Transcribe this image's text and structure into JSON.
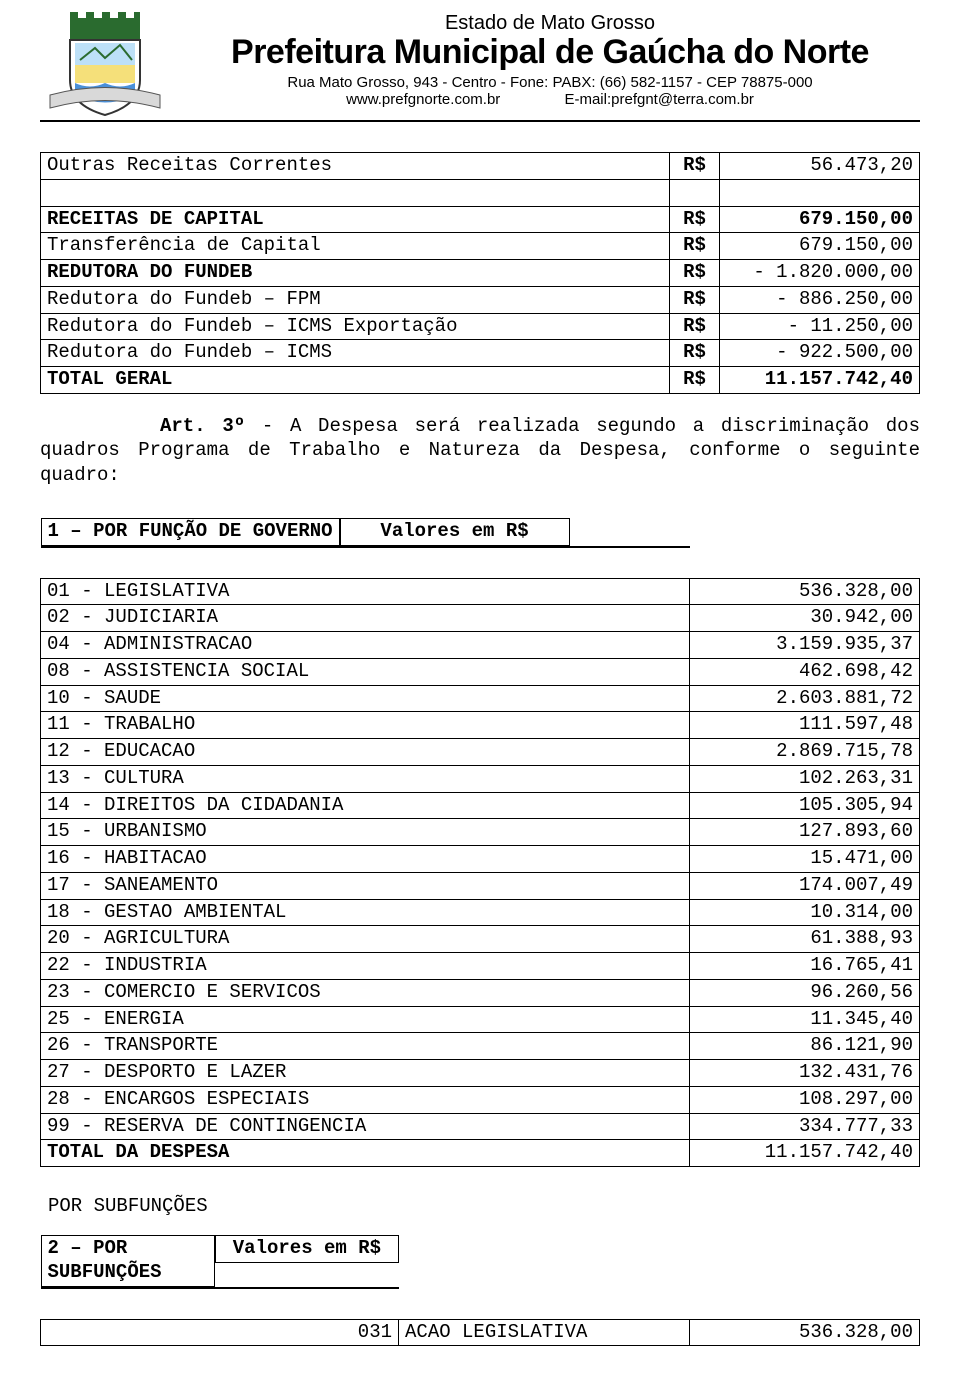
{
  "header": {
    "state": "Estado de Mato Grosso",
    "municipality": "Prefeitura Municipal de Gaúcha do Norte",
    "address": "Rua Mato Grosso, 943 - Centro - Fone: PABX: (66) 582-1157 - CEP 78875-000",
    "website": "www.prefgnorte.com.br",
    "email_label": "E-mail:prefgnt@terra.com.br"
  },
  "receitas_table": {
    "rows": [
      {
        "desc": "Outras Receitas Correntes",
        "cur": "R$",
        "val": "56.473,20",
        "bold": false
      },
      {
        "blank": true
      },
      {
        "desc": "RECEITAS  DE CAPITAL",
        "cur": "R$",
        "val": "679.150,00",
        "bold": true
      },
      {
        "desc": "Transferência de Capital",
        "cur": "R$",
        "val": "679.150,00",
        "bold": false
      },
      {
        "desc": "REDUTORA DO FUNDEB",
        "cur": "R$",
        "val": "- 1.820.000,00",
        "bold": false,
        "desc_bold": true
      },
      {
        "desc": "Redutora do Fundeb – FPM",
        "cur": "R$",
        "val": "- 886.250,00",
        "bold": false
      },
      {
        "desc": "Redutora do Fundeb – ICMS  Exportação",
        "cur": "R$",
        "val": "- 11.250,00",
        "bold": false
      },
      {
        "desc": "Redutora do Fundeb – ICMS",
        "cur": "R$",
        "val": "- 922.500,00",
        "bold": false
      },
      {
        "desc": "TOTAL  GERAL",
        "cur": "R$",
        "val": "11.157.742,40",
        "bold": true
      }
    ]
  },
  "article_text": {
    "art_label": "Art. 3º",
    "rest": " - A Despesa será realizada segundo a discriminação dos quadros Programa de Trabalho e Natureza da Despesa, conforme o seguinte quadro:"
  },
  "funcao_table": {
    "header_left": "1 – POR FUNÇÃO DE GOVERNO",
    "header_right": "Valores em R$",
    "rows": [
      {
        "desc": "01 - LEGISLATIVA",
        "val": "536.328,00"
      },
      {
        "desc": "02 - JUDICIARIA",
        "val": "30.942,00"
      },
      {
        "desc": "04 - ADMINISTRACAO",
        "val": "3.159.935,37"
      },
      {
        "desc": "08 - ASSISTENCIA SOCIAL",
        "val": "462.698,42"
      },
      {
        "desc": "10 - SAUDE",
        "val": "2.603.881,72"
      },
      {
        "desc": "11 - TRABALHO",
        "val": "111.597,48"
      },
      {
        "desc": "12 - EDUCACAO",
        "val": "2.869.715,78"
      },
      {
        "desc": "13 - CULTURA",
        "val": "102.263,31"
      },
      {
        "desc": "14 - DIREITOS DA CIDADANIA",
        "val": "105.305,94"
      },
      {
        "desc": "15 - URBANISMO",
        "val": "127.893,60"
      },
      {
        "desc": "16 - HABITACAO",
        "val": "15.471,00"
      },
      {
        "desc": "17 - SANEAMENTO",
        "val": "174.007,49"
      },
      {
        "desc": "18 - GESTAO AMBIENTAL",
        "val": "10.314,00"
      },
      {
        "desc": "20 - AGRICULTURA",
        "val": "61.388,93"
      },
      {
        "desc": "22 - INDUSTRIA",
        "val": "16.765,41"
      },
      {
        "desc": "23 - COMERCIO E SERVICOS",
        "val": "96.260,56"
      },
      {
        "desc": "25 - ENERGIA",
        "val": "11.345,40"
      },
      {
        "desc": "26 - TRANSPORTE",
        "val": "86.121,90"
      },
      {
        "desc": "27 - DESPORTO E LAZER",
        "val": "132.431,76"
      },
      {
        "desc": "28 - ENCARGOS ESPECIAIS",
        "val": "108.297,00"
      },
      {
        "desc": "99 - RESERVA DE CONTINGENCIA",
        "val": "334.777,33"
      }
    ],
    "total_label": "TOTAL DA DESPESA",
    "total_val": "11.157.742,40"
  },
  "subfuncoes_label": "POR  SUBFUNÇÕES",
  "subfuncao_table": {
    "header_left": "2 – POR SUBFUNÇÕES",
    "header_right": "Valores em R$",
    "rows": [
      {
        "code": "031",
        "desc": "ACAO LEGISLATIVA",
        "val": "536.328,00"
      }
    ]
  },
  "colors": {
    "text": "#000000",
    "background": "#ffffff",
    "border": "#000000"
  }
}
